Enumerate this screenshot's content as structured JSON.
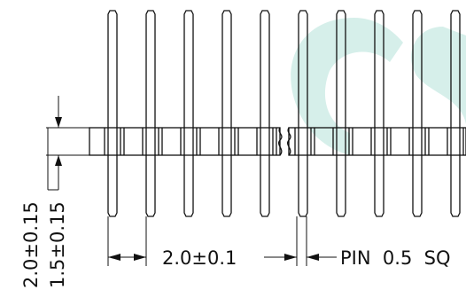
{
  "drawing": {
    "pitch_label": "2.0±0.1",
    "pin_label": "PIN  0.5  SQ",
    "height_labels": [
      "2.0±0.15",
      "1.5±0.15"
    ],
    "watermark_color": "#d6efea",
    "line_color": "#111111",
    "pin_count_visible": 10
  }
}
